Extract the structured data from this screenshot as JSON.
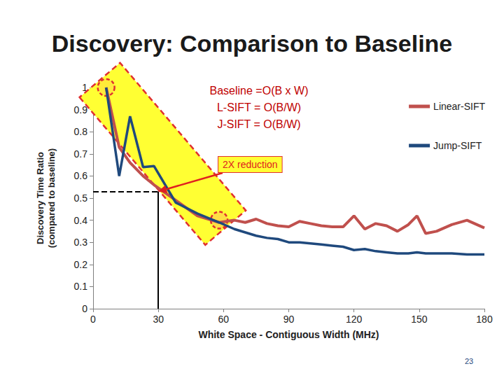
{
  "chart_data": {
    "type": "line",
    "title": "Discovery: Comparison to Baseline",
    "xlabel": "White Space - Contiguous Width (MHz)",
    "ylabel": "Discovery Time Ratio\n(compared to baseline)",
    "x": [
      6,
      12,
      17,
      23,
      28,
      38,
      48,
      58,
      65,
      70,
      75,
      80,
      85,
      90,
      95,
      100,
      105,
      110,
      115,
      120,
      125,
      130,
      135,
      140,
      145,
      149,
      153,
      158,
      165,
      172,
      180
    ],
    "series": [
      {
        "name": "Linear-SIFT",
        "color": "#c0504d",
        "values": [
          1,
          0.73,
          0.66,
          0.6,
          0.56,
          0.49,
          0.42,
          0.39,
          0.4,
          0.39,
          0.405,
          0.385,
          0.375,
          0.37,
          0.395,
          0.385,
          0.375,
          0.37,
          0.37,
          0.42,
          0.36,
          0.385,
          0.375,
          0.35,
          0.38,
          0.42,
          0.34,
          0.35,
          0.38,
          0.4,
          0.365
        ]
      },
      {
        "name": "Jump-SIFT",
        "color": "#1f497d",
        "values": [
          1,
          0.6,
          0.87,
          0.64,
          0.645,
          0.48,
          0.43,
          0.39,
          0.36,
          0.345,
          0.33,
          0.32,
          0.315,
          0.3,
          0.3,
          0.295,
          0.29,
          0.285,
          0.28,
          0.265,
          0.27,
          0.26,
          0.255,
          0.25,
          0.25,
          0.255,
          0.25,
          0.25,
          0.25,
          0.245,
          0.245
        ]
      }
    ],
    "xlim": [
      0,
      180
    ],
    "xticks": [
      0,
      30,
      60,
      90,
      120,
      150,
      180
    ],
    "ylim": [
      0,
      1
    ],
    "yticks": [
      0,
      0.1,
      0.2,
      0.3,
      0.4,
      0.5,
      0.6,
      0.7,
      0.8,
      0.9,
      1
    ],
    "grid": false,
    "legend": "right",
    "annotations": [
      "Baseline =O(B x W)",
      "L-SIFT = O(B/W)",
      "J-SIFT = O(B/W)"
    ],
    "callout": {
      "text": "2X reduction",
      "x": 30,
      "y": 0.53
    },
    "highlight_points": [
      {
        "x": 6,
        "y": 1
      },
      {
        "x": 58,
        "y": 0.4
      }
    ],
    "page": "23"
  }
}
